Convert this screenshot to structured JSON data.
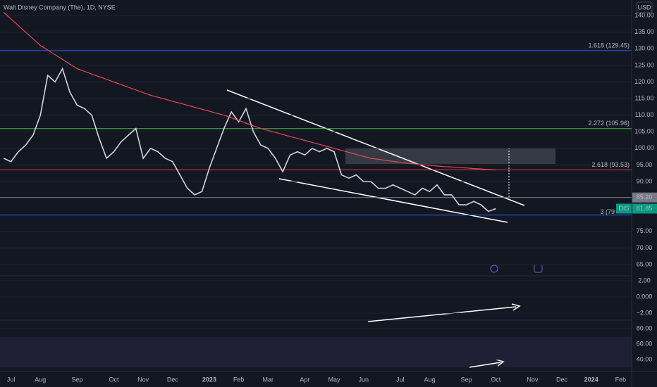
{
  "header": {
    "title": "Walt Disney Company (The), 1D, NYSE",
    "currency": "USD"
  },
  "chart_data": {
    "type": "line",
    "categories": [
      null,
      "Jul",
      null,
      null,
      null,
      "Aug",
      null,
      null,
      null,
      null,
      "Sep",
      null,
      null,
      null,
      null,
      "Oct",
      null,
      null,
      null,
      "Nov",
      null,
      null,
      null,
      "Dec",
      null,
      null,
      null,
      null,
      "2023",
      null,
      null,
      null,
      "Feb",
      null,
      null,
      null,
      "Mar",
      null,
      null,
      null,
      null,
      "Apr",
      null,
      null,
      null,
      "May",
      null,
      null,
      null,
      "Jun",
      null,
      null,
      null,
      null,
      "Jul",
      null,
      null,
      null,
      "Aug",
      null,
      null,
      null,
      null,
      "Sep",
      null,
      null,
      null,
      "Oct",
      null,
      null,
      null,
      null,
      "Nov",
      null,
      null,
      null,
      "Dec",
      null,
      null,
      null,
      "2024",
      null,
      null,
      null,
      "Feb",
      null
    ],
    "series": [
      {
        "color": "#d1d4dc",
        "values": [
          97,
          96,
          99,
          101,
          104,
          110,
          122,
          120,
          124,
          117,
          113,
          112,
          110,
          103,
          97,
          99,
          102,
          104,
          106,
          97,
          100,
          99,
          97,
          96,
          92,
          88,
          86,
          87,
          94,
          100,
          106,
          111,
          108,
          112,
          105,
          101,
          100,
          97,
          93,
          98,
          99,
          98,
          100,
          99,
          100,
          99,
          92,
          91,
          92,
          90,
          90,
          88,
          88,
          89,
          88,
          87,
          86,
          88,
          87,
          89,
          86,
          86,
          83,
          83,
          84,
          83,
          81,
          81.85,
          null,
          null,
          null,
          null,
          null,
          null,
          null,
          null,
          null,
          null,
          null,
          null,
          null,
          null,
          null,
          null,
          null,
          null
        ]
      },
      {
        "color": "#e5484d",
        "values": [
          141,
          139,
          137,
          135,
          133,
          131,
          129.6,
          128.2,
          126.8,
          125.4,
          124,
          123.2,
          122.4,
          121.6,
          120.8,
          120,
          119.2,
          118.4,
          117.6,
          116.8,
          116,
          115.4,
          114.8,
          114.2,
          113.6,
          113,
          112.4,
          111.8,
          111.2,
          110.6,
          110,
          109.2,
          108.4,
          107.6,
          106.8,
          106,
          105.4,
          104.8,
          104.2,
          103.6,
          103,
          102.4,
          101.8,
          101.2,
          100.6,
          100,
          99.4,
          98.8,
          98.2,
          97.6,
          97,
          96.7,
          96.4,
          96.1,
          95.8,
          95.5,
          95.3,
          95.1,
          94.9,
          94.7,
          94.5,
          94.4,
          94.2,
          94.1,
          93.9,
          93.8,
          93.6,
          93.5,
          null,
          null,
          null,
          null,
          null,
          null,
          null,
          null,
          null,
          null,
          null,
          null,
          null,
          null,
          null,
          null,
          null,
          null
        ]
      }
    ],
    "ylim": [
      61.6,
      144.7
    ],
    "yticks": [
      {
        "value": 140,
        "label": "140.00"
      },
      {
        "value": 135,
        "label": "135.00"
      },
      {
        "value": 130,
        "label": "130.00"
      },
      {
        "value": 125,
        "label": "125.00"
      },
      {
        "value": 120,
        "label": "120.00"
      },
      {
        "value": 115,
        "label": "115.00"
      },
      {
        "value": 110,
        "label": "110.00"
      },
      {
        "value": 105,
        "label": "105.00"
      },
      {
        "value": 100,
        "label": "100.00"
      },
      {
        "value": 95,
        "label": "95.00"
      },
      {
        "value": 90,
        "label": "90.00"
      },
      {
        "value": 75,
        "label": "75.00"
      },
      {
        "value": 70,
        "label": "70.00"
      },
      {
        "value": 65,
        "label": "65.00"
      }
    ],
    "grid": true,
    "levels": [
      {
        "value": 129.45,
        "label": "1.618 (129.45)",
        "color": "#2962ff"
      },
      {
        "value": 105.96,
        "label": "2.272 (105.96)",
        "color": "#4caf50"
      },
      {
        "value": 93.53,
        "label": "2.618 (93.53)",
        "color": "#f23645"
      },
      {
        "value": 79.9,
        "label": "3 (79",
        "color": "#2962ff"
      }
    ],
    "marker_level": {
      "value": 85.2,
      "label": "85.20",
      "color": "#787b86"
    },
    "last_price": {
      "value": 81.85,
      "label": "81.85",
      "symbol": "DIS",
      "color": "#089981"
    },
    "macd": {
      "ylim": [
        -2.87,
        2.61
      ],
      "yticks": [
        {
          "value": 2,
          "label": "2.00"
        },
        {
          "value": 0,
          "label": "0.000"
        },
        {
          "value": -2,
          "label": "−2.00"
        }
      ]
    },
    "rsi": {
      "ylim": [
        24.5,
        90.9
      ],
      "yticks": [
        {
          "value": 80,
          "label": "80.00"
        },
        {
          "value": 60,
          "label": "60.00"
        },
        {
          "value": 40,
          "label": "40.00"
        }
      ]
    }
  }
}
